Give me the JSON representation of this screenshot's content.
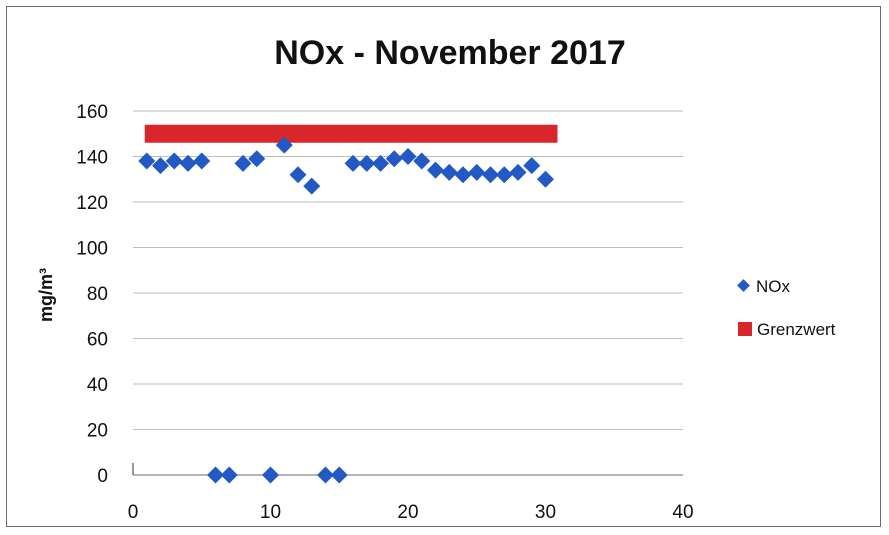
{
  "chart_data": {
    "type": "scatter",
    "title": "NOx -  November 2017",
    "ylabel": "mg/m³",
    "xlabel": "",
    "xlim": [
      0,
      40
    ],
    "ylim": [
      0,
      160
    ],
    "x_ticks": [
      0,
      10,
      20,
      30,
      40
    ],
    "y_ticks": [
      0,
      20,
      40,
      60,
      80,
      100,
      120,
      140,
      160
    ],
    "grid": true,
    "legend_position": "right",
    "series": [
      {
        "name": "NOx",
        "type": "scatter",
        "color": "#2259c4",
        "marker": "diamond",
        "x": [
          1,
          2,
          3,
          4,
          5,
          6,
          7,
          8,
          9,
          10,
          11,
          12,
          13,
          14,
          15,
          16,
          17,
          18,
          19,
          20,
          21,
          22,
          23,
          24,
          25,
          26,
          27,
          28,
          29,
          30
        ],
        "y": [
          138,
          136,
          138,
          137,
          138,
          0,
          0,
          137,
          139,
          0,
          145,
          132,
          127,
          0,
          0,
          137,
          137,
          137,
          139,
          140,
          138,
          134,
          133,
          132,
          133,
          132,
          132,
          133,
          136,
          130
        ]
      },
      {
        "name": "Grenzwert",
        "type": "bar-line",
        "color": "#d9262b",
        "x": [
          1,
          30
        ],
        "y": [
          150,
          150
        ]
      }
    ]
  }
}
